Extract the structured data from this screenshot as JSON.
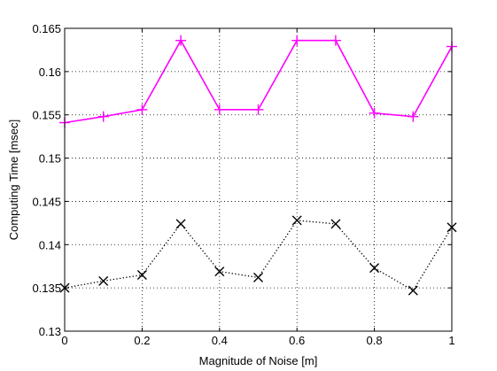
{
  "chart_data": {
    "type": "line",
    "title": "",
    "xlabel": "Magnitude of Noise [m]",
    "ylabel": "Computing Time [msec]",
    "xlim": [
      0,
      1
    ],
    "ylim": [
      0.13,
      0.165
    ],
    "x_ticks": [
      0,
      0.2,
      0.4,
      0.6,
      0.8,
      1
    ],
    "x_tick_labels": [
      "0",
      "0.2",
      "0.4",
      "0.6",
      "0.8",
      "1"
    ],
    "y_ticks": [
      0.13,
      0.135,
      0.14,
      0.145,
      0.15,
      0.155,
      0.16,
      0.165
    ],
    "y_tick_labels": [
      "0.13",
      "0.135",
      "0.14",
      "0.145",
      "0.15",
      "0.155",
      "0.16",
      "0.165"
    ],
    "grid": true,
    "x": [
      0,
      0.1,
      0.2,
      0.3,
      0.4,
      0.5,
      0.6,
      0.7,
      0.8,
      0.9,
      1
    ],
    "series": [
      {
        "color": "#ff00ff",
        "marker": "plus",
        "line_style": "solid",
        "values": [
          0.1541,
          0.1548,
          0.1556,
          0.1636,
          0.1556,
          0.1556,
          0.1636,
          0.1636,
          0.1552,
          0.1548,
          0.1629
        ]
      },
      {
        "color": "#000000",
        "marker": "x",
        "line_style": "dotted",
        "values": [
          0.135,
          0.1358,
          0.1365,
          0.1424,
          0.1369,
          0.1362,
          0.1428,
          0.1424,
          0.1373,
          0.1347,
          0.142
        ]
      }
    ]
  }
}
